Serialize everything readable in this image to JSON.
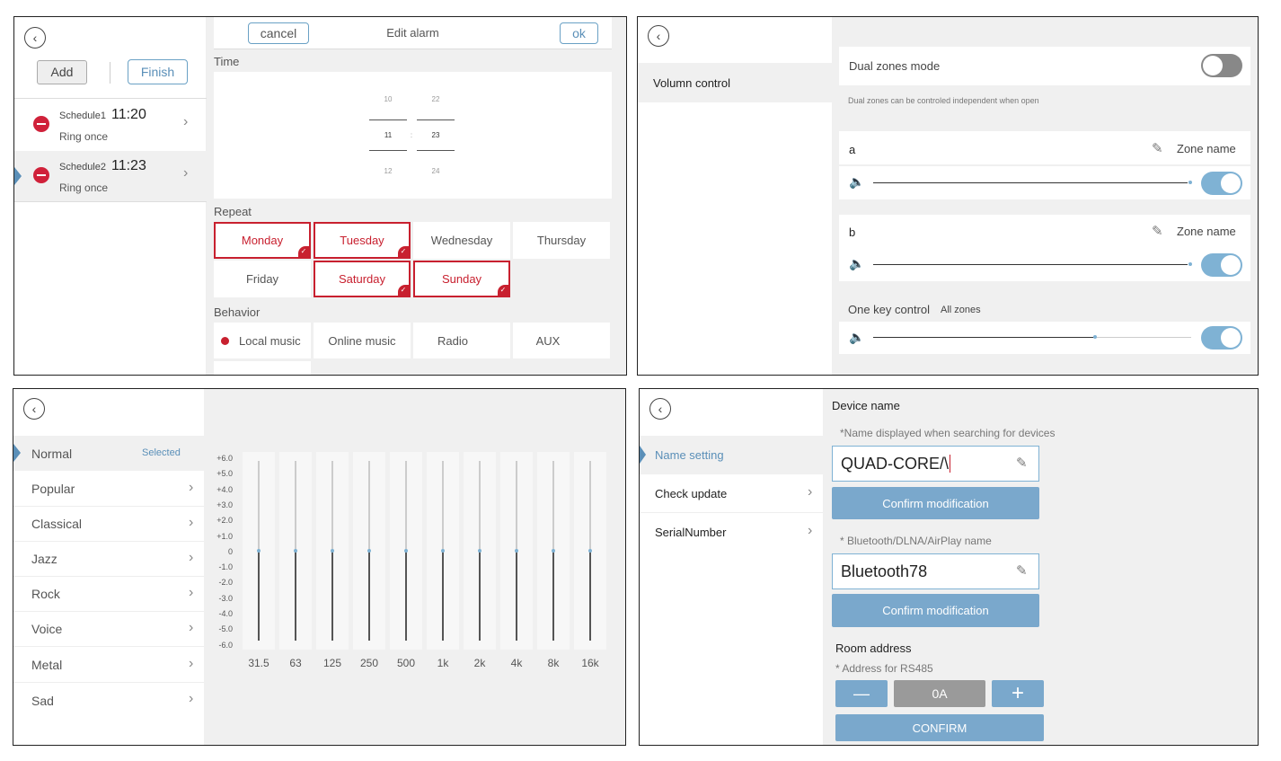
{
  "alarm": {
    "add_label": "Add",
    "finish_label": "Finish",
    "cancel_label": "cancel",
    "title": "Edit alarm",
    "ok_label": "ok",
    "schedules": [
      {
        "name": "Schedule1",
        "time": "11:20",
        "mode": "Ring once"
      },
      {
        "name": "Schedule2",
        "time": "11:23",
        "mode": "Ring once"
      }
    ],
    "time_label": "Time",
    "picker_hours": [
      "10",
      "11",
      "12"
    ],
    "picker_sep": ":",
    "picker_minutes": [
      "22",
      "23",
      "24"
    ],
    "repeat_label": "Repeat",
    "days": [
      {
        "label": "Monday",
        "selected": true
      },
      {
        "label": "Tuesday",
        "selected": true
      },
      {
        "label": "Wednesday",
        "selected": false
      },
      {
        "label": "Thursday",
        "selected": false
      },
      {
        "label": "Friday",
        "selected": false
      },
      {
        "label": "Saturday",
        "selected": true
      },
      {
        "label": "Sunday",
        "selected": true
      }
    ],
    "behavior_label": "Behavior",
    "behaviors": [
      "Local music",
      "Online music",
      "Radio",
      "AUX"
    ]
  },
  "volume": {
    "menu_item": "Volumn control",
    "dual_label": "Dual zones mode",
    "dual_on": false,
    "dual_hint": "Dual zones can be controled independent when open",
    "zones": [
      {
        "name": "a",
        "edit_label": "Zone name",
        "enabled": true
      },
      {
        "name": "b",
        "edit_label": "Zone name",
        "enabled": true
      }
    ],
    "one_key_label": "One key control",
    "one_key_sub": "All zones"
  },
  "eq": {
    "presets": [
      {
        "label": "Normal",
        "status": "Selected"
      },
      {
        "label": "Popular"
      },
      {
        "label": "Classical"
      },
      {
        "label": "Jazz"
      },
      {
        "label": "Rock"
      },
      {
        "label": "Voice"
      },
      {
        "label": "Metal"
      },
      {
        "label": "Sad"
      }
    ],
    "db_labels": [
      "+6.0",
      "+5.0",
      "+4.0",
      "+3.0",
      "+2.0",
      "+1.0",
      "0",
      "-1.0",
      "-2.0",
      "-3.0",
      "-4.0",
      "-5.0",
      "-6.0"
    ],
    "bands": [
      "31.5",
      "63",
      "125",
      "250",
      "500",
      "1k",
      "2k",
      "4k",
      "8k",
      "16k"
    ],
    "gains_db": [
      0,
      0,
      0,
      0,
      0,
      0,
      0,
      0,
      0,
      0
    ]
  },
  "device": {
    "menu": [
      "Name setting",
      "Check update",
      "SerialNumber"
    ],
    "section_title": "Device name",
    "name_hint": "*Name displayed when searching for devices",
    "name_value": "QUAD-CORE/\\",
    "confirm_label": "Confirm modification",
    "bt_hint": "* Bluetooth/DLNA/AirPlay name",
    "bt_value": "Bluetooth78",
    "room_label": "Room address",
    "room_hint": "* Address for RS485",
    "minus_label": "—",
    "address_value": "0A",
    "plus_label": "+",
    "confirm_caps": "CONFIRM"
  }
}
